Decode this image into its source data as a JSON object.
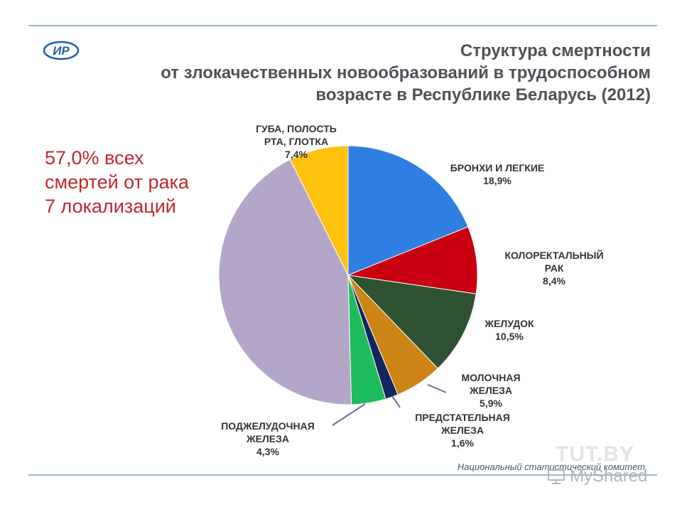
{
  "title_lines": [
    "Структура смертности",
    "от злокачественных новообразований в трудоспособном",
    "возрасте в Республике Беларусь (2012)"
  ],
  "callout_lines": [
    "57,0% всех",
    "смертей от рака",
    "7 локализаций"
  ],
  "source": "Национальный статистический комитет",
  "watermark": "MyShared",
  "ghost_watermark": "TUT.BY",
  "logo_text": "ИР",
  "colors": {
    "title": "#4e5258",
    "callout": "#c0282d",
    "rule": "#9bb5c9",
    "label": "#333333"
  },
  "chart_data": {
    "type": "pie",
    "start": "12 o'clock, clockwise",
    "slices": [
      {
        "lines": [
          "БРОНХИ И ЛЕГКИЕ",
          "18,9%"
        ],
        "value": 18.9,
        "color": "#2f7fe3"
      },
      {
        "lines": [
          "КОЛОРЕКТАЛЬНЫЙ",
          "РАК",
          "8,4%"
        ],
        "value": 8.4,
        "color": "#c8000f"
      },
      {
        "lines": [
          "ЖЕЛУДОК",
          "10,5%"
        ],
        "value": 10.5,
        "color": "#2f5233"
      },
      {
        "lines": [
          "МОЛОЧНАЯ",
          "ЖЕЛЕЗА",
          "5,9%"
        ],
        "value": 5.9,
        "color": "#cc8414"
      },
      {
        "lines": [
          "ПРЕДСТАТЕЛЬНАЯ",
          "ЖЕЛЕЗА",
          "1,6%"
        ],
        "value": 1.6,
        "color": "#13245f"
      },
      {
        "lines": [
          "ПОДЖЕЛУДОЧНАЯ",
          "ЖЕЛЕЗА",
          "4,3%"
        ],
        "value": 4.3,
        "color": "#1ebc5c"
      },
      {
        "lines": [],
        "value": 43.0,
        "color": "#b3a6c9"
      },
      {
        "lines": [
          "ГУБА, ПОЛОСТЬ",
          "РТА, ГЛОТКА",
          "7,4%"
        ],
        "value": 7.4,
        "color": "#ffc20e"
      }
    ]
  }
}
